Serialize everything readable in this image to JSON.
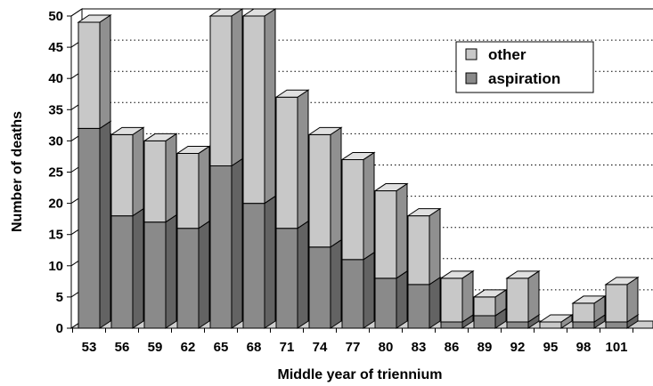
{
  "chart_data": {
    "type": "bar",
    "stacked": true,
    "style": "3d",
    "categories": [
      "53",
      "56",
      "59",
      "62",
      "65",
      "68",
      "71",
      "74",
      "77",
      "80",
      "83",
      "86",
      "89",
      "92",
      "95",
      "98",
      "101"
    ],
    "series": [
      {
        "name": "aspiration",
        "color": "#8a8a8a",
        "values": [
          32,
          18,
          17,
          16,
          26,
          20,
          16,
          13,
          11,
          8,
          7,
          1,
          2,
          1,
          0,
          1,
          1
        ]
      },
      {
        "name": "other",
        "color": "#c8c8c8",
        "values": [
          17,
          13,
          13,
          12,
          24,
          30,
          21,
          18,
          16,
          14,
          11,
          7,
          3,
          7,
          1,
          3,
          6
        ]
      }
    ],
    "xlabel": "Middle year of triennium",
    "ylabel": "Number of deaths",
    "ylim": [
      0,
      50
    ],
    "yticks": [
      0,
      5,
      10,
      15,
      20,
      25,
      30,
      35,
      40,
      45,
      50
    ],
    "grid": "dotted-horizontal",
    "legend": {
      "position": "top-right",
      "entries": [
        "other",
        "aspiration"
      ]
    }
  }
}
